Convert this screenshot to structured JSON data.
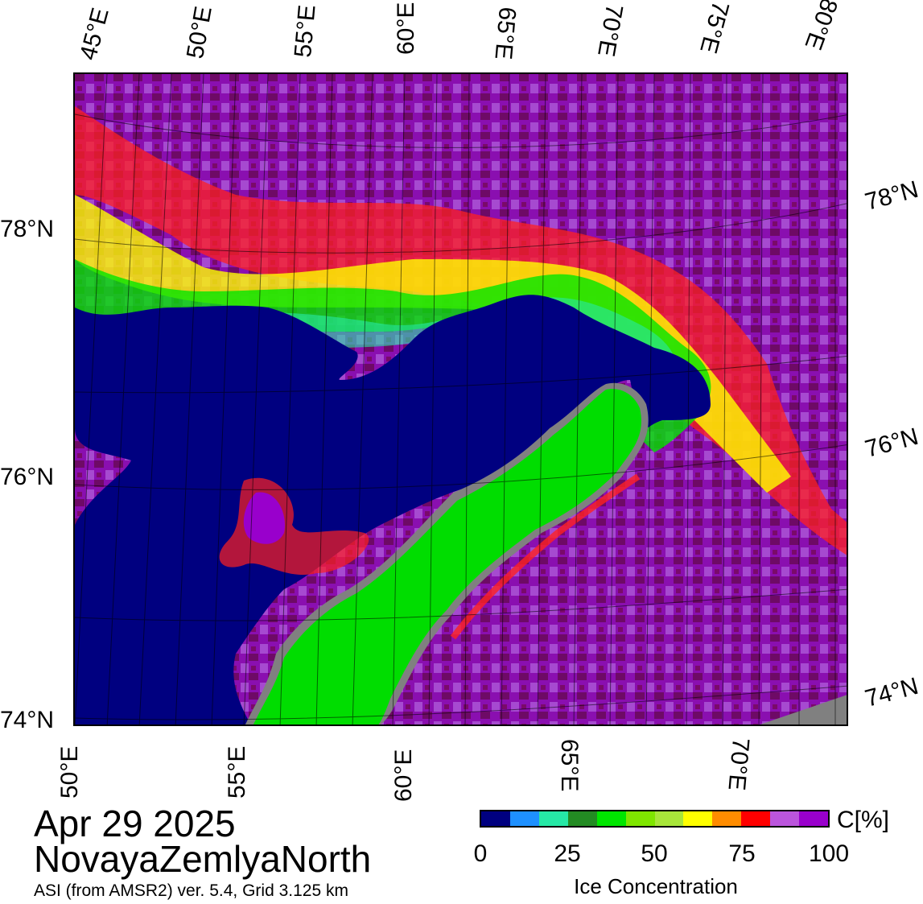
{
  "map": {
    "title_date": "Apr 29 2025",
    "title_region": "NovayaZemlyaNorth",
    "credit": "ASI (from AMSR2) ver. 5.4,  Grid 3.125 km",
    "top_lon_labels": [
      "45°E",
      "50°E",
      "55°E",
      "60°E",
      "65°E",
      "70°E",
      "75°E",
      "80°E"
    ],
    "bottom_lon_labels": [
      "50°E",
      "55°E",
      "60°E",
      "65°E",
      "70°E"
    ],
    "left_lat_labels": [
      "78°N",
      "76°N",
      "74°N"
    ],
    "right_lat_labels": [
      "78°N",
      "76°N",
      "74°N"
    ],
    "colors": {
      "open_water": "#000080",
      "land": "#00dd00",
      "land_ice_edge": "#808080",
      "high_ice": "#9900cc",
      "full_ice": "#7a0a6a",
      "mid_ice": "#aa55cc"
    }
  },
  "colorbar": {
    "unit": "C[%]",
    "label": "Ice Concentration",
    "ticks": [
      "0",
      "25",
      "50",
      "75",
      "100"
    ],
    "colors": [
      "#000080",
      "#1e90ff",
      "#26e8a6",
      "#238b23",
      "#00e600",
      "#7fe600",
      "#a8e63a",
      "#ffff00",
      "#ff8c00",
      "#ff0000",
      "#bb55dd",
      "#9900cc"
    ]
  }
}
